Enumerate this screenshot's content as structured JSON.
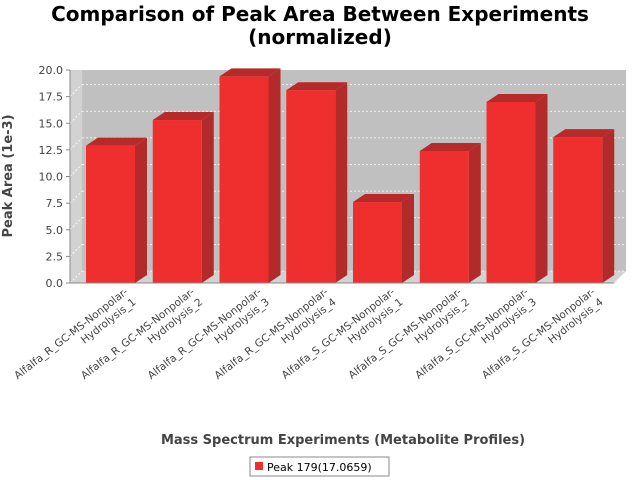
{
  "chart_data": {
    "type": "bar",
    "title": [
      "Comparison of Peak Area Between Experiments",
      "(normalized)"
    ],
    "xlabel": "Mass Spectrum Experiments (Metabolite Profiles)",
    "ylabel": "Peak Area (1e-3)",
    "ylim": [
      0,
      20.0
    ],
    "yticks": [
      "0.0",
      "2.5",
      "5.0",
      "7.5",
      "10.0",
      "12.5",
      "15.0",
      "17.5",
      "20.0"
    ],
    "categories": [
      [
        "Alfalfa_R_GC-MS-Nonpolar-",
        "Hydrolysis_1"
      ],
      [
        "Alfalfa_R_GC-MS-Nonpolar-",
        "Hydrolysis_2"
      ],
      [
        "Alfalfa_R_GC-MS-Nonpolar-",
        "Hydrolysis_3"
      ],
      [
        "Alfalfa_R_GC-MS-Nonpolar-",
        "Hydrolysis_4"
      ],
      [
        "Alfalfa_S_GC-MS-Nonpolar-",
        "Hydrolysis_1"
      ],
      [
        "Alfalfa_S_GC-MS-Nonpolar-",
        "Hydrolysis_2"
      ],
      [
        "Alfalfa_S_GC-MS-Nonpolar-",
        "Hydrolysis_3"
      ],
      [
        "Alfalfa_S_GC-MS-Nonpolar-",
        "Hydrolysis_4"
      ]
    ],
    "series": [
      {
        "name": "Peak 179(17.0659)",
        "values": [
          12.9,
          15.3,
          19.4,
          18.1,
          7.6,
          12.4,
          17.0,
          13.7
        ]
      }
    ],
    "colors": {
      "bar": "#ef2e2e",
      "bar_top": "#b72a2a",
      "bar_side": "#b22a2a",
      "plot_bg": "#c0c0c0",
      "wall": "#d2d2d2"
    },
    "grid": true,
    "legend_position": "bottom"
  }
}
